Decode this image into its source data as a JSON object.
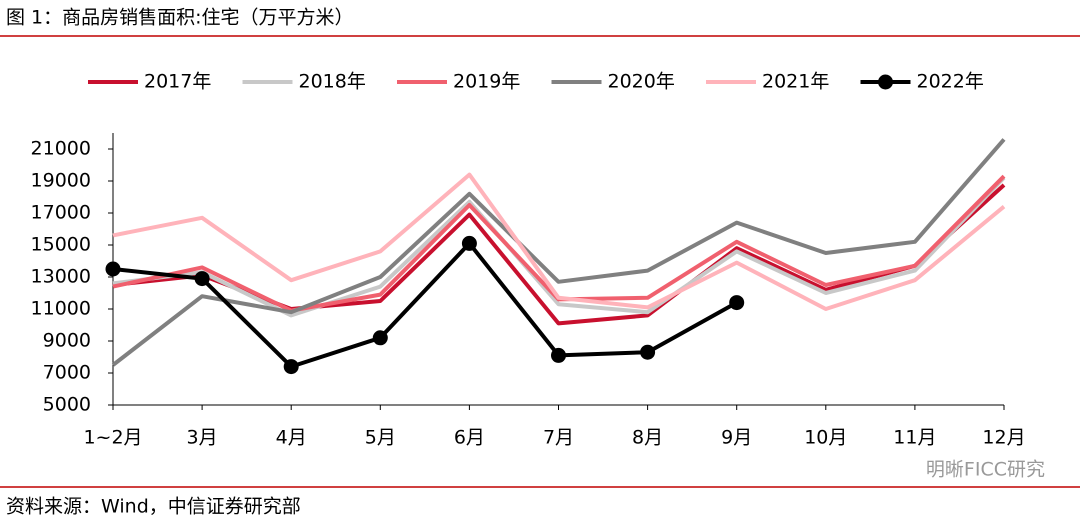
{
  "chart_data": {
    "type": "line",
    "title": "图 1：商品房销售面积:住宅（万平方米）",
    "source": "资料来源：Wind，中信证券研究部",
    "watermark": "明晰FICC研究",
    "categories": [
      "1~2月",
      "3月",
      "4月",
      "5月",
      "6月",
      "7月",
      "8月",
      "9月",
      "10月",
      "11月",
      "12月"
    ],
    "ylim": [
      5000,
      22000
    ],
    "yticks": [
      5000,
      7000,
      9000,
      11000,
      13000,
      15000,
      17000,
      19000,
      21000
    ],
    "legend": "top",
    "series": [
      {
        "name": "2017年",
        "color": "#c8102e",
        "values": [
          12500,
          13100,
          11000,
          11500,
          16900,
          10100,
          10600,
          14800,
          12200,
          13700,
          18750
        ]
      },
      {
        "name": "2018年",
        "color": "#c8c8c8",
        "values": [
          12600,
          13300,
          10600,
          12400,
          17700,
          11300,
          10800,
          14600,
          12000,
          13400,
          19200
        ]
      },
      {
        "name": "2019年",
        "color": "#f0606e",
        "values": [
          12400,
          13600,
          10900,
          11900,
          17500,
          11600,
          11700,
          15200,
          12500,
          13700,
          19300
        ]
      },
      {
        "name": "2020年",
        "color": "#808080",
        "values": [
          7500,
          11800,
          10800,
          13000,
          18200,
          12700,
          13400,
          16400,
          14500,
          15200,
          21600
        ]
      },
      {
        "name": "2021年",
        "color": "#ffb3ba",
        "values": [
          15600,
          16700,
          12800,
          14600,
          19400,
          11700,
          11100,
          13900,
          11000,
          12800,
          17400
        ]
      },
      {
        "name": "2022年",
        "color": "#000000",
        "marker": true,
        "values": [
          13500,
          12900,
          7400,
          9200,
          15100,
          8100,
          8300,
          11400,
          null,
          null,
          null
        ]
      }
    ]
  }
}
